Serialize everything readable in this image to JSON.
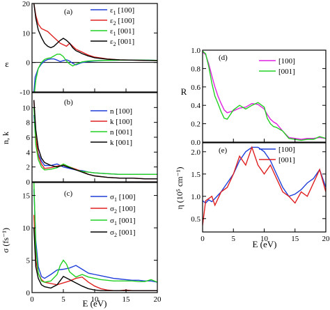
{
  "chart_data": [
    {
      "type": "line",
      "panel_label": "(a)",
      "ylabel": "ε",
      "xlim": [
        0,
        20
      ],
      "ylim": [
        -10,
        20
      ],
      "yticks": [
        "-10",
        "0",
        "10",
        "20"
      ],
      "legend_position": "top-right",
      "series": [
        {
          "name": "ε1 [100]",
          "sub": "1",
          "pre": "ε",
          "post": " [100]",
          "color": "#1f3fd9",
          "x": [
            0.3,
            0.5,
            1,
            1.5,
            2,
            2.5,
            3,
            3.5,
            4,
            4.5,
            5,
            5.5,
            6,
            6.5,
            7,
            7.5,
            8,
            9,
            10,
            12,
            14,
            16,
            18,
            20
          ],
          "y": [
            -10,
            -5,
            -2,
            -0.5,
            0.5,
            1,
            1.2,
            1.2,
            0.8,
            0.3,
            0.6,
            0.9,
            0.5,
            -0.3,
            -0.8,
            -0.4,
            0,
            0.3,
            0.5,
            0.7,
            0.8,
            0.8,
            0.8,
            0.7
          ]
        },
        {
          "name": "ε2 [100]",
          "sub": "2",
          "pre": "ε",
          "post": " [100]",
          "color": "#e02020",
          "x": [
            0.3,
            0.6,
            1,
            1.5,
            2,
            2.5,
            3,
            3.5,
            4,
            4.5,
            5,
            5.5,
            6,
            6.5,
            7,
            7.5,
            8,
            9,
            10,
            12,
            14,
            16,
            18,
            20
          ],
          "y": [
            20,
            16,
            13,
            11.5,
            11,
            10.5,
            9.5,
            8.5,
            7.5,
            6.5,
            6,
            5.5,
            6.5,
            5.5,
            4.5,
            4,
            3.5,
            2.5,
            1.8,
            1.2,
            0.9,
            0.8,
            0.7,
            0.6
          ]
        },
        {
          "name": "ε1 [001]",
          "sub": "1",
          "pre": "ε",
          "post": " [001]",
          "color": "#22d022",
          "x": [
            0.3,
            0.6,
            1,
            1.5,
            2,
            2.5,
            3,
            3.5,
            4,
            4.5,
            5,
            5.5,
            6,
            6.5,
            7,
            7.5,
            8,
            9,
            10,
            12,
            14,
            16,
            18,
            20
          ],
          "y": [
            -12,
            -6,
            -2,
            0,
            1,
            1.4,
            1.6,
            2.2,
            2.8,
            2.8,
            2,
            0.5,
            -0.5,
            -1.2,
            -0.6,
            -0.2,
            0.2,
            0.5,
            0.6,
            0.7,
            0.8,
            0.8,
            0.8,
            0.7
          ]
        },
        {
          "name": "ε2 [001]",
          "sub": "2",
          "pre": "ε",
          "post": " [001]",
          "color": "#000000",
          "x": [
            0.3,
            0.6,
            1,
            1.5,
            2,
            2.5,
            3,
            3.5,
            4,
            4.5,
            5,
            5.5,
            6,
            6.5,
            7,
            7.5,
            8,
            9,
            10,
            12,
            14,
            16,
            18,
            20
          ],
          "y": [
            20,
            15,
            11,
            8.5,
            6.5,
            5.5,
            5,
            5.5,
            6.5,
            7.5,
            8.2,
            7.5,
            6.5,
            5,
            4,
            3.5,
            3,
            2.2,
            1.6,
            1.1,
            0.9,
            0.8,
            0.7,
            0.6
          ]
        }
      ]
    },
    {
      "type": "line",
      "panel_label": "(b)",
      "ylabel": "n, k",
      "xlim": [
        0,
        20
      ],
      "ylim": [
        0,
        12
      ],
      "yticks": [
        "0",
        "2",
        "4",
        "6",
        "8",
        "10"
      ],
      "legend_position": "top-right",
      "series": [
        {
          "name": "n [100]",
          "pre": "n [100]",
          "color": "#1f3fd9",
          "x": [
            0.3,
            0.6,
            1,
            1.5,
            2,
            3,
            4,
            5,
            6,
            7,
            8,
            9,
            10,
            12,
            14,
            16,
            18,
            20
          ],
          "y": [
            9,
            5.5,
            3.8,
            2.8,
            2.2,
            2.2,
            2.4,
            2.0,
            1.8,
            1.6,
            1.5,
            1.3,
            1.2,
            1.1,
            1.0,
            1.0,
            1.0,
            1.0
          ]
        },
        {
          "name": "k [100]",
          "pre": "k [100]",
          "color": "#e02020",
          "x": [
            0.3,
            0.6,
            1,
            1.5,
            2,
            3,
            4,
            5,
            6,
            7,
            8,
            9,
            10,
            12,
            14,
            16,
            18,
            20
          ],
          "y": [
            11,
            6,
            3.5,
            2.4,
            1.8,
            1.9,
            2.1,
            2.3,
            2.0,
            1.7,
            1.4,
            1.0,
            0.8,
            0.6,
            0.5,
            0.5,
            0.4,
            0.4
          ]
        },
        {
          "name": "n [001]",
          "pre": "n [001]",
          "color": "#22d022",
          "x": [
            0.3,
            0.6,
            1,
            1.5,
            2,
            3,
            4,
            5,
            6,
            7,
            8,
            9,
            10,
            12,
            14,
            16,
            18,
            20
          ],
          "y": [
            10,
            5,
            3.0,
            2.0,
            1.6,
            1.7,
            1.9,
            2.4,
            2.0,
            1.6,
            1.4,
            1.3,
            1.2,
            1.1,
            1.0,
            1.0,
            1.0,
            1.0
          ]
        },
        {
          "name": "k [001]",
          "pre": "k [001]",
          "color": "#000000",
          "x": [
            0.3,
            0.6,
            1,
            1.5,
            2,
            3,
            4,
            5,
            6,
            7,
            8,
            9,
            10,
            12,
            14,
            16,
            18,
            20
          ],
          "y": [
            11,
            7,
            4.5,
            3.2,
            2.6,
            2.2,
            2.0,
            2.2,
            1.9,
            1.6,
            1.3,
            1.0,
            0.8,
            0.6,
            0.5,
            0.5,
            0.4,
            0.4
          ]
        }
      ]
    },
    {
      "type": "line",
      "panel_label": "(c)",
      "ylabel": "σ (fs⁻¹)",
      "xlim": [
        0,
        20
      ],
      "xticks": [
        "0",
        "5",
        "10",
        "15",
        "20"
      ],
      "xlabel": "E (eV)",
      "ylim": [
        0,
        17
      ],
      "yticks": [
        "0",
        "5",
        "10",
        "15"
      ],
      "legend_position": "top-right",
      "series": [
        {
          "name": "σ1 [100]",
          "sub": "1",
          "pre": "σ",
          "post": " [100]",
          "color": "#1f3fd9",
          "x": [
            0.3,
            0.6,
            1,
            1.5,
            2,
            3,
            4,
            5,
            6,
            7,
            8,
            9,
            10,
            11,
            12,
            13,
            14,
            15,
            16,
            17,
            18,
            19,
            20
          ],
          "y": [
            16,
            8,
            4,
            2.5,
            2.2,
            2.8,
            3.5,
            3.6,
            3.8,
            4.2,
            3.6,
            3.0,
            2.8,
            2.6,
            2.4,
            2.2,
            2.1,
            2.0,
            1.9,
            1.9,
            1.8,
            1.8,
            1.6
          ]
        },
        {
          "name": "σ2 [100]",
          "sub": "2",
          "pre": "σ",
          "post": " [100]",
          "color": "#e02020",
          "x": [
            0.3,
            0.6,
            1,
            1.5,
            2,
            3,
            4,
            5,
            6,
            7,
            8,
            9,
            10,
            11,
            12,
            13,
            14,
            15,
            16,
            17,
            18,
            19,
            20
          ],
          "y": [
            12,
            5,
            3,
            2.0,
            1.6,
            1.4,
            1.2,
            1.5,
            1.8,
            2.2,
            2.4,
            1.6,
            1.0,
            0.6,
            0.4,
            0.3,
            0.3,
            0.4,
            0.3,
            0.3,
            0.3,
            0.3,
            0.3
          ]
        },
        {
          "name": "σ1 [001]",
          "sub": "1",
          "pre": "σ",
          "post": " [001]",
          "color": "#22d022",
          "x": [
            0.3,
            0.6,
            1,
            1.5,
            2,
            3,
            4,
            4.5,
            5,
            5.5,
            6,
            7,
            8,
            9,
            10,
            11,
            12,
            13,
            14,
            15,
            16,
            17,
            18,
            19,
            20
          ],
          "y": [
            17,
            7,
            3,
            1.8,
            1.6,
            1.8,
            2.8,
            4.2,
            5.0,
            4.4,
            3.2,
            2.4,
            2.8,
            2.4,
            2.2,
            2.0,
            1.9,
            1.8,
            1.8,
            1.8,
            1.8,
            1.7,
            1.7,
            2.0,
            1.6
          ]
        },
        {
          "name": "σ2 [001]",
          "sub": "2",
          "pre": "σ",
          "post": " [001]",
          "color": "#000000",
          "x": [
            0.3,
            0.6,
            1,
            1.5,
            2,
            3,
            4,
            5,
            6,
            7,
            8,
            9,
            10,
            11,
            12,
            13,
            14,
            15,
            16,
            17,
            18,
            19,
            20
          ],
          "y": [
            10,
            4,
            2.2,
            1.2,
            0.9,
            0.7,
            1.2,
            2.5,
            2.0,
            1.5,
            1.0,
            0.6,
            0.4,
            0.3,
            0.3,
            0.3,
            0.3,
            0.3,
            0.3,
            0.3,
            0.3,
            0.3,
            0.3
          ]
        }
      ]
    },
    {
      "type": "line",
      "panel_label": "(d)",
      "ylabel": "R",
      "xlim": [
        0,
        20
      ],
      "ylim": [
        0,
        1.0
      ],
      "yticks": [
        "0.0",
        "0.2",
        "0.4",
        "0.6",
        "0.8",
        "1.0"
      ],
      "legend_position": "top-right",
      "series": [
        {
          "name": "[100]",
          "pre": "[100]",
          "color": "#e020e0",
          "x": [
            0,
            0.5,
            1,
            1.5,
            2,
            2.5,
            3,
            3.5,
            4,
            5,
            6,
            7,
            8,
            9,
            10,
            10.5,
            11,
            11.5,
            12,
            13,
            14,
            15,
            16,
            17,
            18,
            19,
            20
          ],
          "y": [
            0.98,
            0.95,
            0.85,
            0.72,
            0.6,
            0.5,
            0.42,
            0.35,
            0.32,
            0.34,
            0.37,
            0.38,
            0.42,
            0.41,
            0.36,
            0.3,
            0.25,
            0.22,
            0.2,
            0.12,
            0.05,
            0.04,
            0.03,
            0.04,
            0.04,
            0.05,
            0.04
          ]
        },
        {
          "name": "[001]",
          "pre": "[001]",
          "color": "#22d022",
          "x": [
            0,
            0.5,
            1,
            1.5,
            2,
            2.5,
            3,
            3.5,
            4,
            5,
            6,
            7,
            8,
            9,
            10,
            10.5,
            11,
            11.5,
            12,
            13,
            14,
            15,
            16,
            17,
            18,
            19,
            20
          ],
          "y": [
            0.99,
            0.96,
            0.82,
            0.64,
            0.5,
            0.42,
            0.33,
            0.26,
            0.25,
            0.35,
            0.4,
            0.36,
            0.4,
            0.43,
            0.38,
            0.26,
            0.2,
            0.17,
            0.16,
            0.12,
            0.04,
            0.03,
            0.02,
            0.03,
            0.03,
            0.06,
            0.04
          ]
        }
      ]
    },
    {
      "type": "line",
      "panel_label": "(e)",
      "ylabel": "η (10⁵ cm⁻¹)",
      "xlim": [
        0,
        20
      ],
      "xticks": [
        "0",
        "5",
        "10",
        "15",
        "20"
      ],
      "xlabel": "E (eV)",
      "ylim": [
        0.2,
        2.2
      ],
      "yticks": [
        "0.5",
        "1.0",
        "1.5",
        "2.0"
      ],
      "legend_position": "top-right",
      "series": [
        {
          "name": "[100]",
          "pre": "[100]",
          "color": "#1f3fd9",
          "x": [
            0,
            0.5,
            1,
            1.5,
            2,
            3,
            4,
            5,
            6,
            7,
            8,
            9,
            10,
            11,
            12,
            13,
            14,
            15,
            16,
            17,
            18,
            19,
            20
          ],
          "y": [
            0.9,
            0.85,
            0.92,
            0.88,
            0.95,
            1.1,
            1.3,
            1.5,
            1.8,
            2.0,
            2.1,
            2.1,
            2.0,
            1.8,
            1.5,
            1.2,
            1.0,
            1.05,
            1.15,
            1.3,
            1.4,
            1.6,
            1.2
          ]
        },
        {
          "name": "[001]",
          "pre": "[001]",
          "color": "#e02020",
          "x": [
            0,
            0.5,
            1,
            1.5,
            2,
            3,
            4,
            5,
            6,
            7,
            8,
            9,
            10,
            11,
            12,
            13,
            14,
            15,
            16,
            17,
            18,
            19,
            20
          ],
          "y": [
            0.35,
            0.9,
            0.95,
            1.0,
            0.8,
            1.1,
            1.2,
            1.5,
            1.9,
            1.7,
            2.1,
            1.7,
            1.5,
            1.7,
            1.4,
            1.1,
            1.0,
            0.85,
            1.1,
            1.0,
            1.3,
            1.6,
            1.1
          ]
        }
      ]
    }
  ]
}
